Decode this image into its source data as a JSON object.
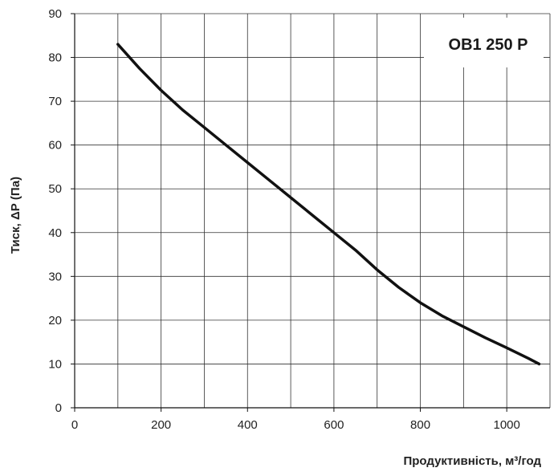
{
  "chart_data": {
    "type": "line",
    "title": "",
    "annotation": "ОВ1 250 Р",
    "xlabel": "Продуктивність, м³/год",
    "ylabel": "Тиск, ΔР (Па)",
    "xlim": [
      0,
      1100
    ],
    "ylim": [
      0,
      90
    ],
    "x_ticks": [
      0,
      200,
      400,
      600,
      800,
      1000
    ],
    "y_ticks": [
      0,
      10,
      20,
      30,
      40,
      50,
      60,
      70,
      80,
      90
    ],
    "x_tick_labels": [
      "0",
      "200",
      "400",
      "600",
      "800",
      "1000"
    ],
    "y_tick_labels": [
      "0",
      "10",
      "20",
      "30",
      "40",
      "50",
      "60",
      "70",
      "80",
      "90"
    ],
    "grid": true,
    "series": [
      {
        "x": [
          100,
          150,
          200,
          250,
          300,
          350,
          400,
          450,
          500,
          550,
          600,
          650,
          700,
          750,
          800,
          850,
          900,
          950,
          1000,
          1050,
          1075
        ],
        "y": [
          83,
          77.5,
          72.5,
          68,
          64,
          60,
          56,
          52,
          48,
          44,
          40,
          36,
          31.5,
          27.5,
          24,
          21,
          18.5,
          16,
          13.7,
          11.3,
          10
        ]
      }
    ],
    "colors": {
      "line": "#111111",
      "grid": "#333333",
      "axis": "#111111"
    }
  }
}
